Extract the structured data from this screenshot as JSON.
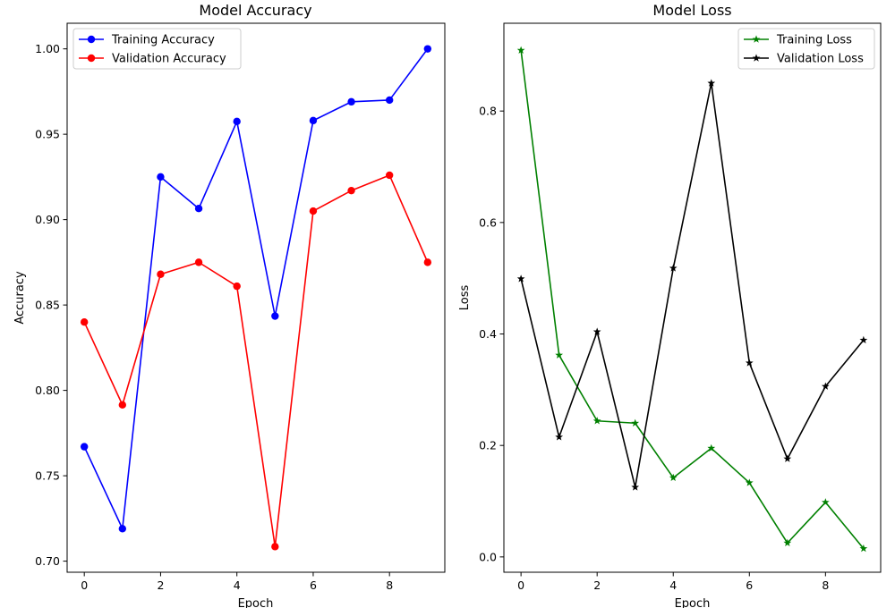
{
  "chart_data": [
    {
      "type": "line",
      "title": "Model Accuracy",
      "xlabel": "Epoch",
      "ylabel": "Accuracy",
      "xlim": [
        -0.45,
        9.45
      ],
      "ylim": [
        0.6935,
        1.015
      ],
      "xticks": [
        0,
        2,
        4,
        6,
        8
      ],
      "yticks": [
        0.7,
        0.75,
        0.8,
        0.85,
        0.9,
        0.95,
        1.0
      ],
      "ytick_labels": [
        "0.70",
        "0.75",
        "0.80",
        "0.85",
        "0.90",
        "0.95",
        "1.00"
      ],
      "grid": false,
      "legend_position": "top-left",
      "x": [
        0,
        1,
        2,
        3,
        4,
        5,
        6,
        7,
        8,
        9
      ],
      "series": [
        {
          "name": "Training Accuracy",
          "color": "#0000ff",
          "marker": "circle",
          "values": [
            0.767,
            0.719,
            0.925,
            0.9065,
            0.9575,
            0.8435,
            0.958,
            0.969,
            0.97,
            1.0
          ]
        },
        {
          "name": "Validation Accuracy",
          "color": "#ff0000",
          "marker": "circle",
          "values": [
            0.84,
            0.7915,
            0.868,
            0.875,
            0.861,
            0.7085,
            0.905,
            0.917,
            0.926,
            0.875
          ]
        }
      ]
    },
    {
      "type": "line",
      "title": "Model Loss",
      "xlabel": "Epoch",
      "ylabel": "Loss",
      "xlim": [
        -0.45,
        9.45
      ],
      "ylim": [
        -0.0275,
        0.9575
      ],
      "xticks": [
        0,
        2,
        4,
        6,
        8
      ],
      "yticks": [
        0.0,
        0.2,
        0.4,
        0.6,
        0.8
      ],
      "ytick_labels": [
        "0.0",
        "0.2",
        "0.4",
        "0.6",
        "0.8"
      ],
      "grid": false,
      "legend_position": "top-right",
      "x": [
        0,
        1,
        2,
        3,
        4,
        5,
        6,
        7,
        8,
        9
      ],
      "series": [
        {
          "name": "Training Loss",
          "color": "#008000",
          "marker": "star",
          "values": [
            0.909,
            0.362,
            0.244,
            0.24,
            0.142,
            0.195,
            0.133,
            0.025,
            0.098,
            0.015
          ]
        },
        {
          "name": "Validation Loss",
          "color": "#000000",
          "marker": "star",
          "values": [
            0.499,
            0.215,
            0.404,
            0.125,
            0.518,
            0.85,
            0.348,
            0.176,
            0.306,
            0.389
          ]
        }
      ]
    }
  ]
}
